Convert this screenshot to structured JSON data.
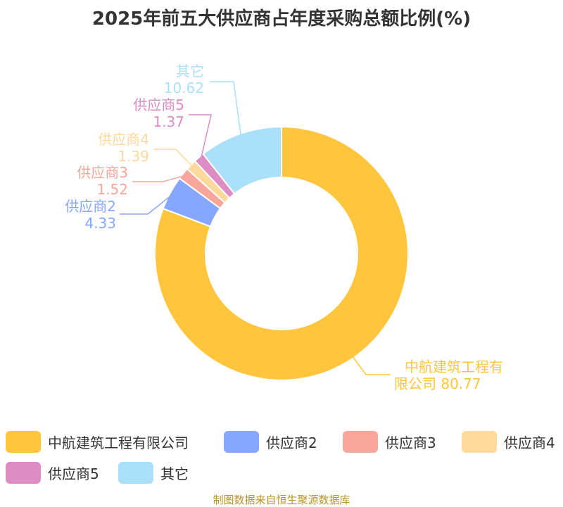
{
  "title": "2025年前五大供应商占年度采购总额比例(%)",
  "source": "制图数据来自恒生聚源数据库",
  "chart_data": {
    "type": "pie",
    "variant": "donut",
    "title": "2025年前五大供应商占年度采购总额比例(%)",
    "legend_position": "bottom",
    "slices": [
      {
        "name": "中航建筑工程有限公司",
        "value": 80.77,
        "color": "#ffc53d"
      },
      {
        "name": "供应商2",
        "value": 4.33,
        "color": "#87a7ff"
      },
      {
        "name": "供应商3",
        "value": 1.52,
        "color": "#f8a59c"
      },
      {
        "name": "供应商4",
        "value": 1.39,
        "color": "#fdd99b"
      },
      {
        "name": "供应商5",
        "value": 1.37,
        "color": "#de8cc4"
      },
      {
        "name": "其它",
        "value": 10.62,
        "color": "#abe0fb"
      }
    ]
  }
}
